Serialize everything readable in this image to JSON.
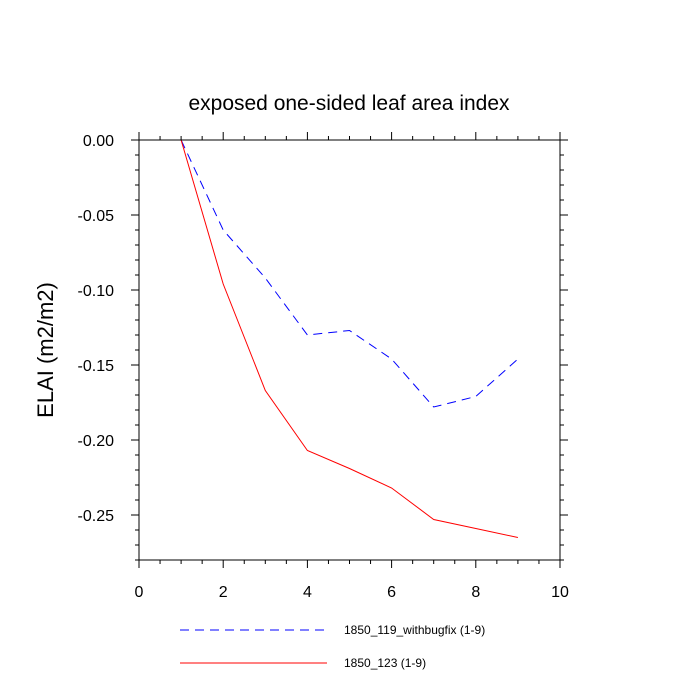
{
  "chart_data": {
    "type": "line",
    "title": "exposed one-sided leaf area index",
    "xlabel": "",
    "ylabel": "ELAI  (m2/m2)",
    "xlim": [
      0,
      10
    ],
    "ylim": [
      -0.28,
      0.0
    ],
    "x_ticks": [
      0,
      2,
      4,
      6,
      8,
      10
    ],
    "x_tick_labels": [
      "0",
      "2",
      "4",
      "6",
      "8",
      "10"
    ],
    "y_ticks": [
      0.0,
      -0.05,
      -0.1,
      -0.15,
      -0.2,
      -0.25
    ],
    "y_tick_labels": [
      "0.00",
      "-0.05",
      "-0.10",
      "-0.15",
      "-0.20",
      "-0.25"
    ],
    "grid": false,
    "legend_position": "bottom",
    "series": [
      {
        "name": "1850_119_withbugfix (1-9)",
        "color": "#0000ff",
        "style": "dashed",
        "x": [
          1,
          2,
          3,
          4,
          5,
          6,
          7,
          8,
          9
        ],
        "values": [
          0.0,
          -0.06,
          -0.092,
          -0.13,
          -0.127,
          -0.146,
          -0.178,
          -0.171,
          -0.146
        ]
      },
      {
        "name": "1850_123 (1-9)",
        "color": "#ff0000",
        "style": "solid",
        "x": [
          1,
          2,
          3,
          4,
          5,
          6,
          7,
          8,
          9
        ],
        "values": [
          0.0,
          -0.096,
          -0.167,
          -0.207,
          -0.219,
          -0.232,
          -0.253,
          -0.259,
          -0.265
        ]
      }
    ]
  }
}
